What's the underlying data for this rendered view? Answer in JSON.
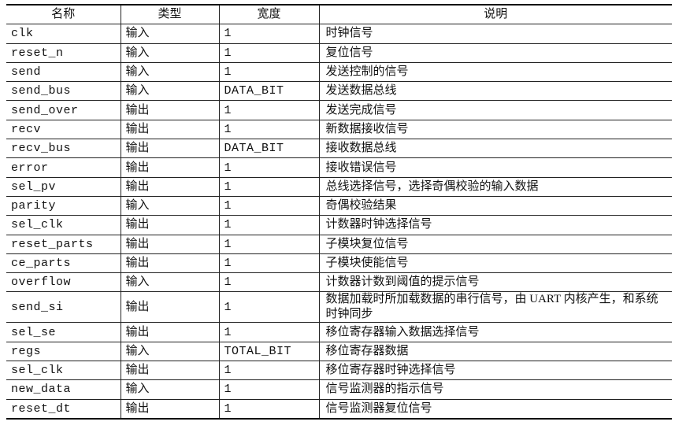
{
  "headers": [
    "名称",
    "类型",
    "宽度",
    "说明"
  ],
  "rows": [
    {
      "name": "clk",
      "type": "输入",
      "width": "1",
      "desc": "时钟信号"
    },
    {
      "name": "reset_n",
      "type": "输入",
      "width": "1",
      "desc": "复位信号"
    },
    {
      "name": "send",
      "type": "输入",
      "width": "1",
      "desc": "发送控制的信号"
    },
    {
      "name": "send_bus",
      "type": "输入",
      "width": "DATA_BIT",
      "desc": "发送数据总线"
    },
    {
      "name": "send_over",
      "type": "输出",
      "width": "1",
      "desc": "发送完成信号"
    },
    {
      "name": "recv",
      "type": "输出",
      "width": "1",
      "desc": "新数据接收信号"
    },
    {
      "name": "recv_bus",
      "type": "输出",
      "width": "DATA_BIT",
      "desc": "接收数据总线"
    },
    {
      "name": "error",
      "type": "输出",
      "width": "1",
      "desc": "接收错误信号"
    },
    {
      "name": "sel_pv",
      "type": "输出",
      "width": "1",
      "desc": "总线选择信号，选择奇偶校验的输入数据"
    },
    {
      "name": "parity",
      "type": "输入",
      "width": "1",
      "desc": "奇偶校验结果"
    },
    {
      "name": "sel_clk",
      "type": "输出",
      "width": "1",
      "desc": "计数器时钟选择信号"
    },
    {
      "name": "reset_parts",
      "type": "输出",
      "width": "1",
      "desc": "子模块复位信号"
    },
    {
      "name": "ce_parts",
      "type": "输出",
      "width": "1",
      "desc": "子模块使能信号"
    },
    {
      "name": "overflow",
      "type": "输入",
      "width": "1",
      "desc": "计数器计数到阈值的提示信号"
    },
    {
      "name": "send_si",
      "type": "输出",
      "width": "1",
      "desc": "数据加载时所加载数据的串行信号，由 UART 内核产生，和系统时钟同步"
    },
    {
      "name": "sel_se",
      "type": "输出",
      "width": "1",
      "desc": "移位寄存器输入数据选择信号"
    },
    {
      "name": "regs",
      "type": "输入",
      "width": "TOTAL_BIT",
      "desc": "移位寄存器数据"
    },
    {
      "name": "sel_clk",
      "type": "输出",
      "width": "1",
      "desc": "移位寄存器时钟选择信号"
    },
    {
      "name": "new_data",
      "type": "输入",
      "width": "1",
      "desc": "信号监测器的指示信号"
    },
    {
      "name": "reset_dt",
      "type": "输出",
      "width": "1",
      "desc": "信号监测器复位信号"
    }
  ]
}
